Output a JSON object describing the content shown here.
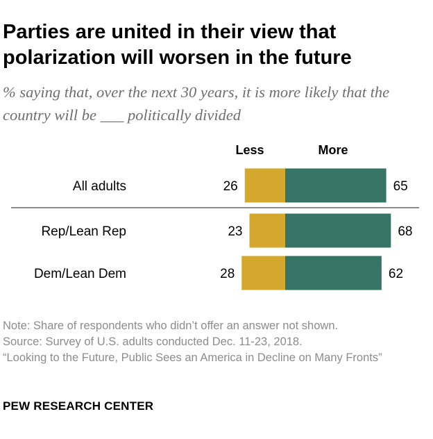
{
  "title": "Parties are united in their view that polarization will worsen in the future",
  "subtitle": "% saying that, over the next 30 years, it is more likely that the country will be ___ politically divided",
  "chart_data": {
    "type": "bar",
    "orientation": "horizontal-diverging",
    "categories": [
      "All adults",
      "Rep/Lean Rep",
      "Dem/Lean Dem"
    ],
    "series": [
      {
        "name": "Less",
        "values": [
          26,
          23,
          28
        ],
        "color": "#d4a82c"
      },
      {
        "name": "More",
        "values": [
          65,
          68,
          62
        ],
        "color": "#367566"
      }
    ],
    "legend_placement": "top"
  },
  "notes": [
    "Note: Share of respondents who didn’t offer an answer not shown.",
    "Source: Survey of U.S. adults conducted Dec. 11-23, 2018.",
    "“Looking to the Future, Public Sees an America in Decline on Many Fronts”"
  ],
  "brand": "PEW RESEARCH CENTER",
  "colors": {
    "less": "#d4a82c",
    "more": "#367566",
    "divider": "#8c8c8c",
    "note_text": "#8c8c8c",
    "subtitle_text": "#6e6e6e"
  }
}
